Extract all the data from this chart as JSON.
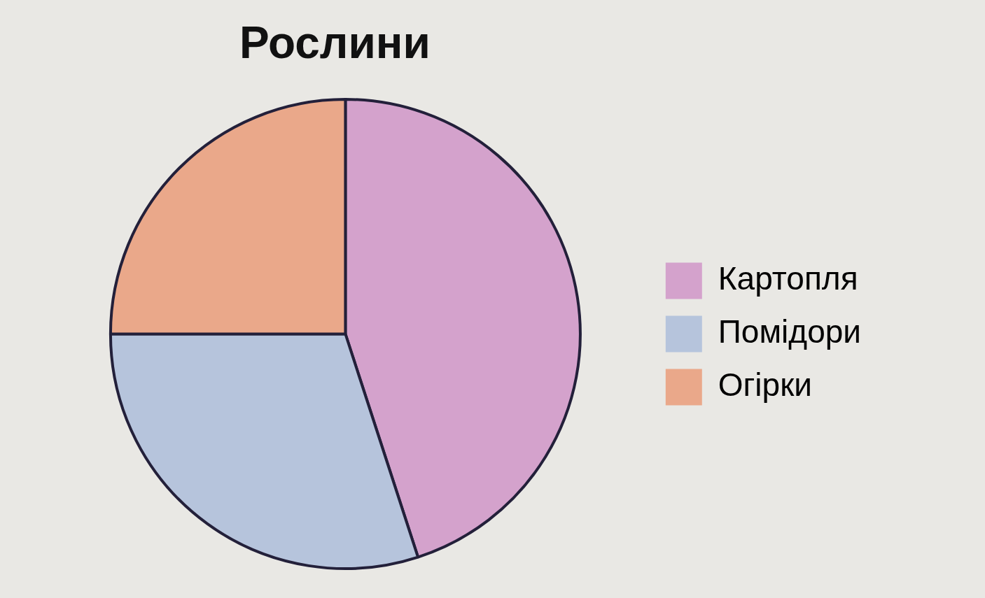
{
  "chart_data": {
    "type": "pie",
    "title": "Рослини",
    "categories": [
      "Картопля",
      "Помідори",
      "Огірки"
    ],
    "values": [
      45,
      30,
      25
    ],
    "colors": [
      "#d4a2cc",
      "#b6c4dc",
      "#eaa88a"
    ],
    "legend": "right"
  }
}
